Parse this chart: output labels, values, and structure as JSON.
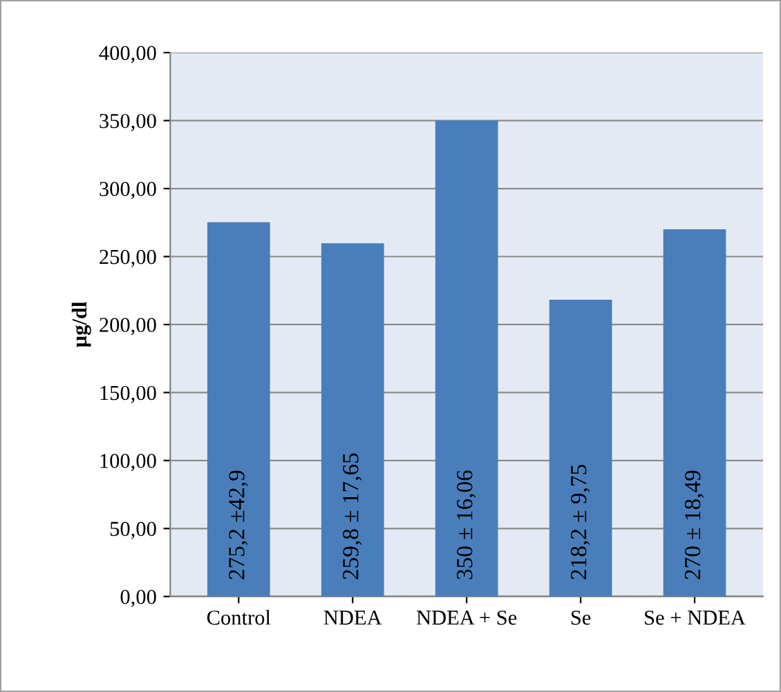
{
  "chart_data": {
    "type": "bar",
    "ylabel": "µg/dl",
    "categories": [
      "Control",
      "NDEA",
      "NDEA + Se",
      "Se",
      "Se + NDEA"
    ],
    "values": [
      275.2,
      259.8,
      350,
      218.2,
      270
    ],
    "value_labels": [
      "275,2 ±42,9",
      "259,8 ± 17,65",
      "350 ± 16,06",
      "218,2 ± 9,75",
      "270 ± 18,49"
    ],
    "color": "#4a7ebb",
    "ylim": [
      0,
      400
    ],
    "yticks": [
      {
        "value": 0,
        "label": "0,00"
      },
      {
        "value": 50,
        "label": "50,00"
      },
      {
        "value": 100,
        "label": "100,00"
      },
      {
        "value": 150,
        "label": "150,00"
      },
      {
        "value": 200,
        "label": "200,00"
      },
      {
        "value": 250,
        "label": "250,00"
      },
      {
        "value": 300,
        "label": "300,00"
      },
      {
        "value": 350,
        "label": "350,00"
      },
      {
        "value": 400,
        "label": "400,00"
      }
    ],
    "grid": "y",
    "legend": false
  }
}
